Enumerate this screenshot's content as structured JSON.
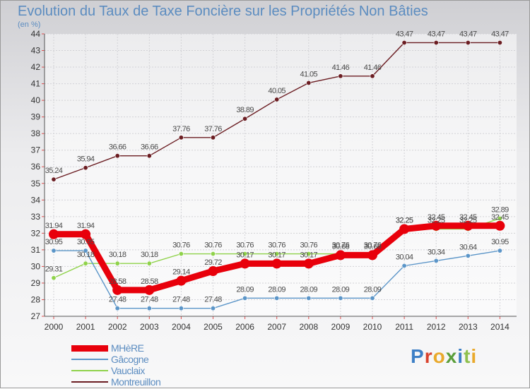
{
  "chart_data": {
    "type": "line",
    "title": "Evolution du Taux de Taxe Foncière sur les Propriétés Non Bâties",
    "unit_label": "(en %)",
    "x": [
      "2000",
      "2001",
      "2002",
      "2003",
      "2004",
      "2005",
      "2006",
      "2007",
      "2008",
      "2009",
      "2010",
      "2011",
      "2012",
      "2013",
      "2014"
    ],
    "ylim": [
      27,
      44
    ],
    "y_ticks": [
      "27",
      "28",
      "29",
      "30",
      "31",
      "32",
      "33",
      "34",
      "35",
      "36",
      "37",
      "38",
      "39",
      "40",
      "41",
      "42",
      "43",
      "44"
    ],
    "grid": true,
    "series": [
      {
        "name": "MHèRE",
        "color": "#e8000b",
        "values": [
          31.94,
          31.94,
          28.58,
          28.58,
          29.14,
          29.72,
          30.17,
          30.17,
          30.17,
          30.68,
          30.68,
          32.25,
          32.45,
          32.45,
          32.45
        ]
      },
      {
        "name": "Gâcogne",
        "color": "#5b95c8",
        "values": [
          30.95,
          30.95,
          27.48,
          27.48,
          27.48,
          27.48,
          28.09,
          28.09,
          28.09,
          28.09,
          28.09,
          30.04,
          30.34,
          30.64,
          30.95
        ]
      },
      {
        "name": "Vauclaix",
        "color": "#8fd24a",
        "values": [
          29.31,
          30.18,
          30.18,
          30.18,
          30.76,
          30.76,
          30.76,
          30.76,
          30.76,
          30.76,
          30.76,
          32.25,
          32.25,
          32.25,
          32.89
        ]
      },
      {
        "name": "Montreuillon",
        "color": "#6b1d22",
        "values": [
          35.24,
          35.94,
          36.66,
          36.66,
          37.76,
          37.76,
          38.89,
          40.05,
          41.05,
          41.46,
          41.46,
          43.47,
          43.47,
          43.47,
          43.47
        ]
      }
    ]
  },
  "logo": {
    "letters": [
      "P",
      "r",
      "o",
      "x",
      "i",
      "t",
      "i"
    ],
    "colors": [
      "#3d7fc6",
      "#d9412c",
      "#e9a92c",
      "#5a9e3a",
      "#3d7fc6",
      "#8fc04e",
      "#e9a92c"
    ]
  }
}
